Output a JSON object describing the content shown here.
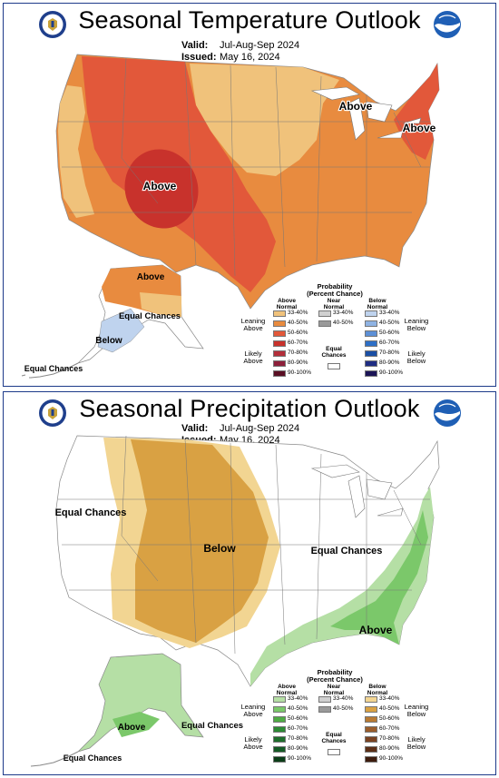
{
  "temperature": {
    "title": "Seasonal Temperature Outlook",
    "valid_label": "Valid:",
    "valid_value": "Jul-Aug-Sep 2024",
    "issued_label": "Issued:",
    "issued_value": "May 16, 2024",
    "regions": {
      "southwest": "Above",
      "great_lakes": "Above",
      "northeast": "Above",
      "alaska_north": "Above",
      "alaska_south": "Below",
      "alaska_equal": "Equal Chances",
      "aleutian_equal": "Equal Chances"
    },
    "legend": {
      "title": "Probability",
      "subtitle": "(Percent Chance)",
      "col_above": "Above Normal",
      "col_near": "Near Normal",
      "col_below": "Below Normal",
      "above_ranges": [
        "33-40%",
        "40-50%",
        "50-60%",
        "60-70%",
        "70-80%",
        "80-90%",
        "90-100%"
      ],
      "above_colors": [
        "#f0c27b",
        "#e88b3f",
        "#e2583a",
        "#c8322c",
        "#b32f3a",
        "#8d1f3a",
        "#5a0f24"
      ],
      "near_ranges": [
        "33-40%",
        "40-50%"
      ],
      "near_colors": [
        "#d0d0d0",
        "#9a9a9a"
      ],
      "equal_label": "Equal Chances",
      "below_ranges": [
        "33-40%",
        "40-50%",
        "50-60%",
        "60-70%",
        "70-80%",
        "80-90%",
        "90-100%"
      ],
      "below_colors": [
        "#bfd3ee",
        "#8fb3e3",
        "#5d90d6",
        "#2e6fc6",
        "#1b4fa4",
        "#1f2d83",
        "#1b1456"
      ],
      "leaning_above": "Leaning Above",
      "likely_above": "Likely Above",
      "leaning_below": "Leaning Below",
      "likely_below": "Likely Below"
    }
  },
  "precipitation": {
    "title": "Seasonal Precipitation Outlook",
    "valid_label": "Valid:",
    "valid_value": "Jul-Aug-Sep 2024",
    "issued_label": "Issued:",
    "issued_value": "May 16, 2024",
    "regions": {
      "west_equal": "Equal Chances",
      "center_below": "Below",
      "east_equal": "Equal Chances",
      "southeast_above": "Above",
      "alaska_above": "Above",
      "alaska_equal": "Equal Chances",
      "aleutian_equal": "Equal Chances"
    },
    "legend": {
      "title": "Probability",
      "subtitle": "(Percent Chance)",
      "col_above": "Above Normal",
      "col_near": "Near Normal",
      "col_below": "Below Normal",
      "above_ranges": [
        "33-40%",
        "40-50%",
        "50-60%",
        "60-70%",
        "70-80%",
        "80-90%",
        "90-100%"
      ],
      "above_colors": [
        "#b5dfa5",
        "#7bc86a",
        "#4fab45",
        "#2d8a34",
        "#1f6e2c",
        "#155a25",
        "#0b3d18"
      ],
      "near_ranges": [
        "33-40%",
        "40-50%"
      ],
      "near_colors": [
        "#d0d0d0",
        "#9a9a9a"
      ],
      "equal_label": "Equal Chances",
      "below_ranges": [
        "33-40%",
        "40-50%",
        "50-60%",
        "60-70%",
        "70-80%",
        "80-90%",
        "90-100%"
      ],
      "below_colors": [
        "#f2d592",
        "#d9a143",
        "#b87a33",
        "#9a5d2c",
        "#7a4322",
        "#5b2f17",
        "#3d1c0d"
      ],
      "leaning_above": "Leaning Above",
      "likely_above": "Likely Above",
      "leaning_below": "Leaning Below",
      "likely_below": "Likely Below"
    }
  }
}
